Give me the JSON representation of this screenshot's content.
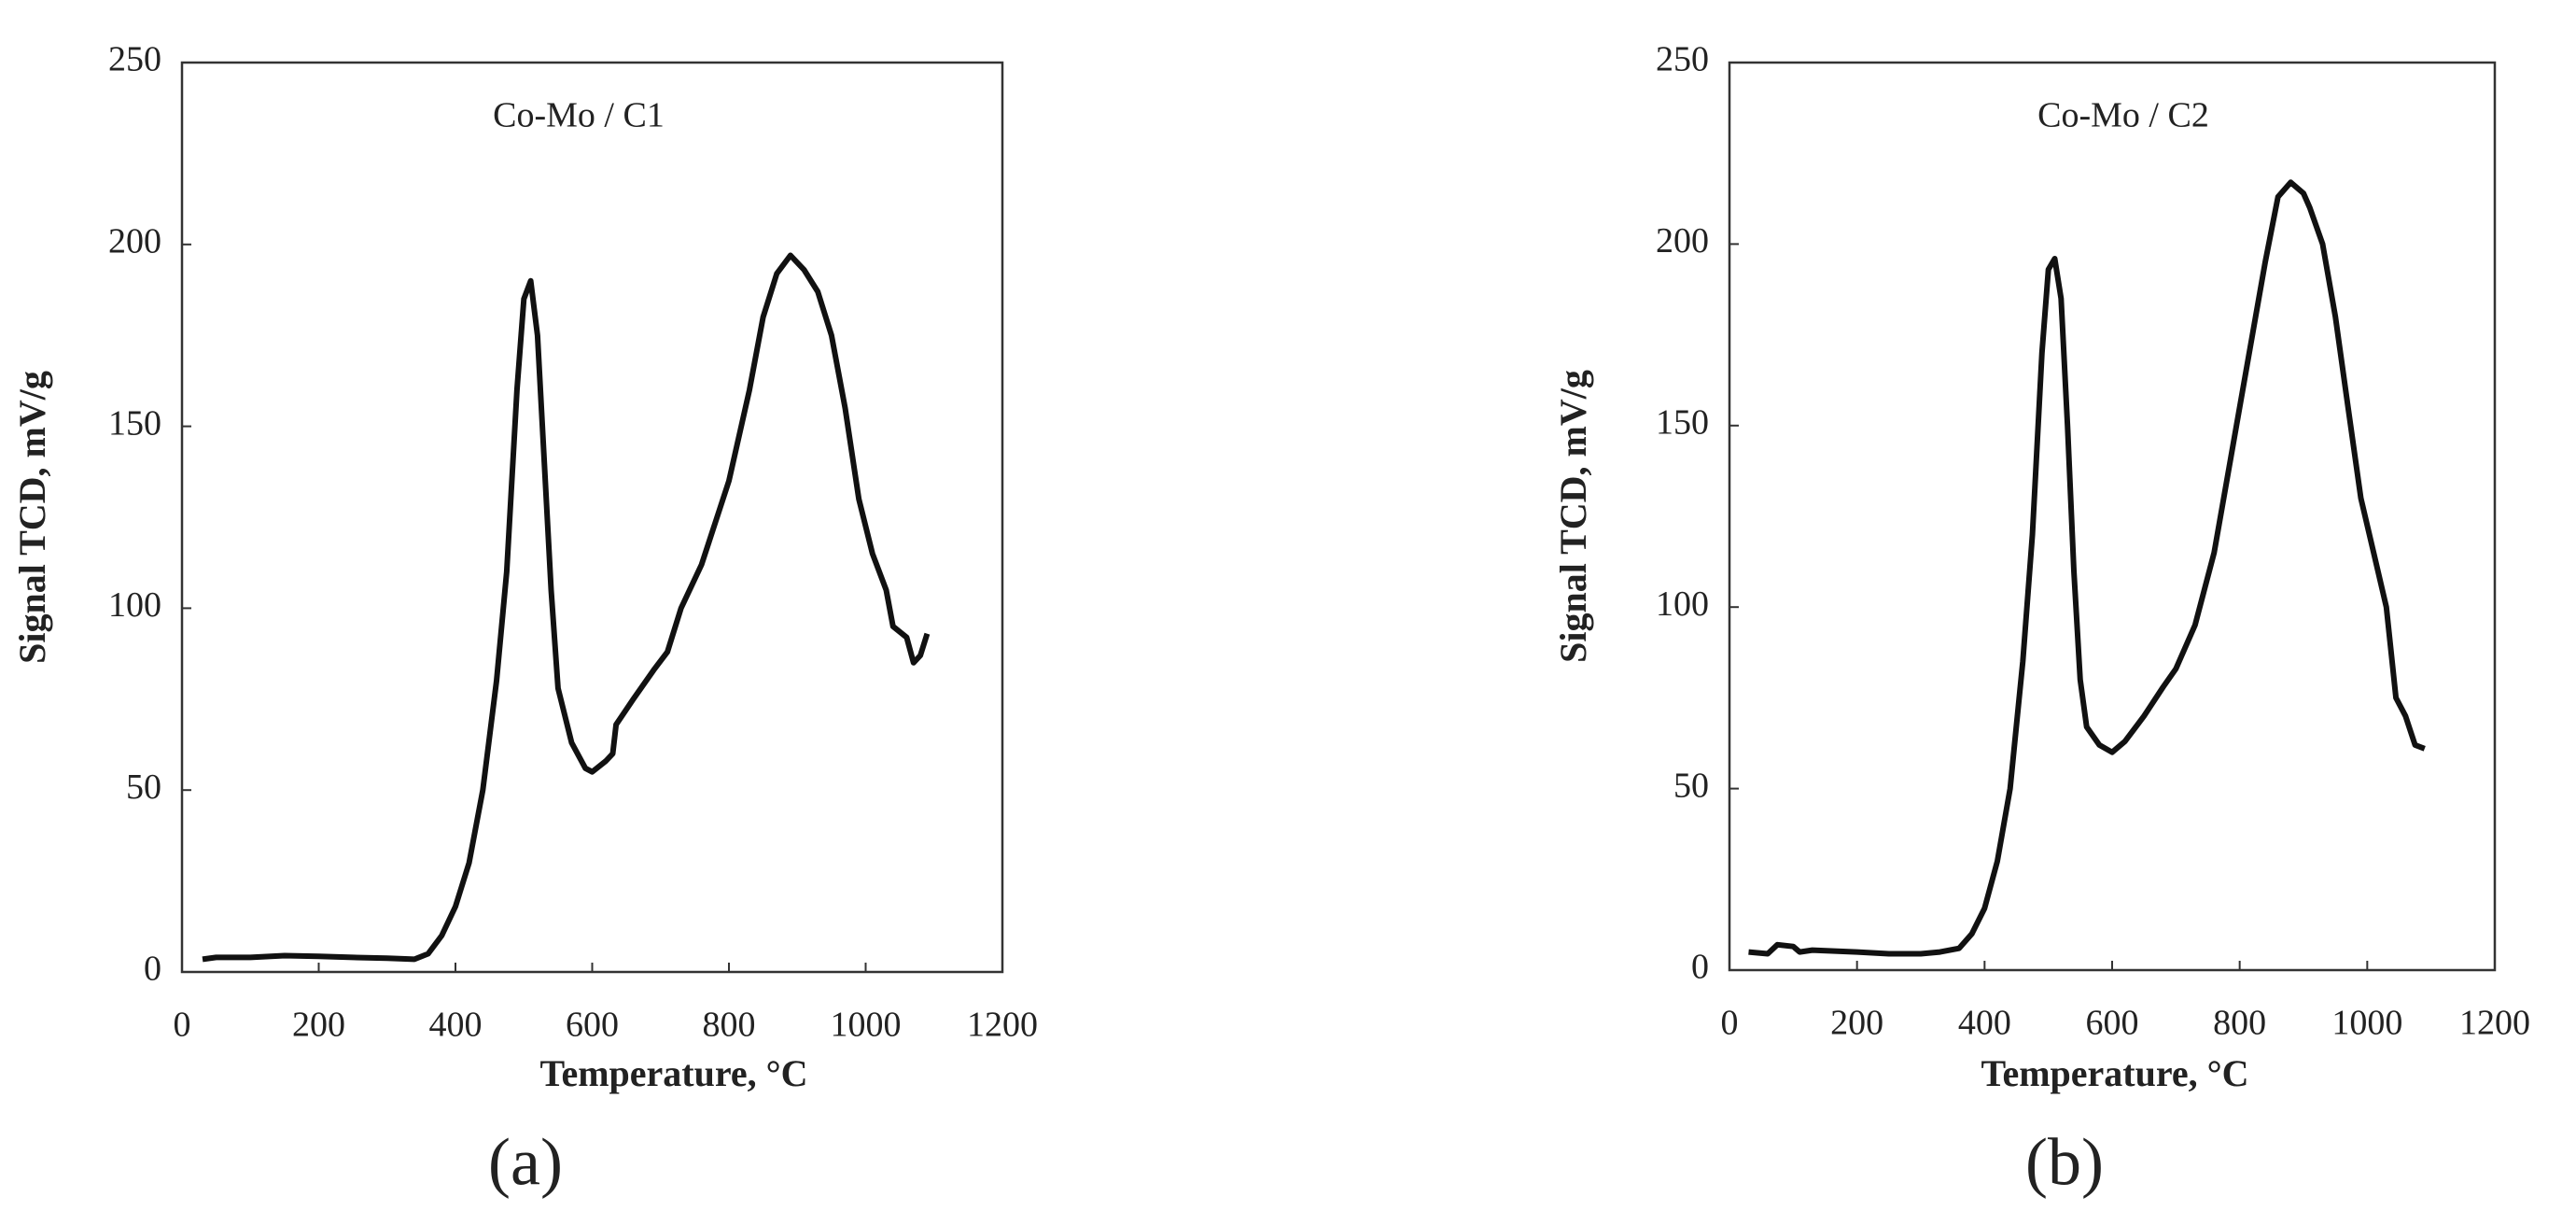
{
  "chart_data": [
    {
      "type": "line",
      "title": "Co-Mo / C1",
      "panel_label": "(a)",
      "xlabel": "Temperature, °C",
      "ylabel": "Signal TCD, mV/g",
      "xlim": [
        0,
        1200
      ],
      "ylim": [
        0,
        250
      ],
      "xticks": [
        0,
        200,
        400,
        600,
        800,
        1000,
        1200
      ],
      "yticks": [
        0,
        50,
        100,
        150,
        200,
        250
      ],
      "series": [
        {
          "color": "#111111",
          "x": [
            30,
            50,
            100,
            150,
            200,
            250,
            300,
            340,
            360,
            380,
            400,
            420,
            440,
            460,
            475,
            490,
            500,
            510,
            520,
            530,
            540,
            550,
            570,
            590,
            600,
            620,
            630,
            635,
            660,
            690,
            710,
            730,
            760,
            800,
            830,
            850,
            870,
            890,
            910,
            930,
            950,
            970,
            990,
            1010,
            1030,
            1040,
            1060,
            1070,
            1080,
            1090
          ],
          "values": [
            3.5,
            4,
            4,
            4.5,
            4.3,
            4,
            3.8,
            3.5,
            5,
            10,
            18,
            30,
            50,
            80,
            110,
            160,
            185,
            190,
            175,
            140,
            105,
            78,
            63,
            56,
            55,
            58,
            60,
            68,
            75,
            83,
            88,
            100,
            112,
            135,
            160,
            180,
            192,
            197,
            193,
            187,
            175,
            155,
            130,
            115,
            105,
            95,
            92,
            85,
            87,
            93
          ]
        }
      ]
    },
    {
      "type": "line",
      "title": "Co-Mo / C2",
      "panel_label": "(b)",
      "xlabel": "Temperature, °C",
      "ylabel": "Signal TCD, mV/g",
      "xlim": [
        0,
        1200
      ],
      "ylim": [
        0,
        250
      ],
      "xticks": [
        0,
        200,
        400,
        600,
        800,
        1000,
        1200
      ],
      "yticks": [
        0,
        50,
        100,
        150,
        200,
        250
      ],
      "series": [
        {
          "color": "#111111",
          "x": [
            30,
            60,
            75,
            100,
            110,
            130,
            200,
            250,
            300,
            330,
            360,
            380,
            400,
            420,
            440,
            460,
            475,
            490,
            500,
            510,
            520,
            530,
            540,
            550,
            560,
            580,
            600,
            620,
            650,
            680,
            700,
            730,
            760,
            790,
            820,
            840,
            860,
            880,
            900,
            910,
            930,
            950,
            970,
            990,
            1010,
            1030,
            1045,
            1060,
            1075,
            1090
          ],
          "values": [
            5,
            4.5,
            7,
            6.5,
            5,
            5.5,
            5,
            4.5,
            4.5,
            5,
            6,
            10,
            17,
            30,
            50,
            85,
            120,
            170,
            193,
            196,
            185,
            150,
            110,
            80,
            67,
            62,
            60,
            63,
            70,
            78,
            83,
            95,
            115,
            145,
            175,
            195,
            213,
            217,
            214,
            210,
            200,
            180,
            155,
            130,
            115,
            100,
            75,
            70,
            62,
            61
          ]
        }
      ]
    }
  ]
}
